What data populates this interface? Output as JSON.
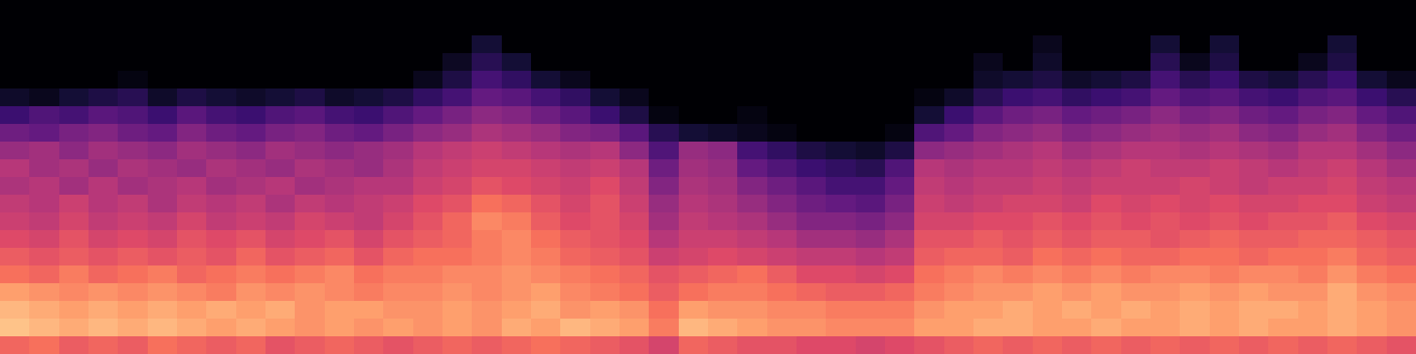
{
  "chart_data": {
    "type": "heatmap",
    "color": "magma",
    "tick_labels": false,
    "zlim": [
      -80,
      0
    ],
    "cells": [
      [
        -26,
        -24,
        -28,
        -26,
        -28,
        -24,
        -26,
        -28,
        -26,
        -30,
        -28,
        -26,
        -28,
        -30,
        -28,
        -26,
        -28,
        -26,
        -24,
        -26,
        -28,
        -30,
        -34,
        -26,
        -28,
        -30,
        -30,
        -32,
        -32,
        -34,
        -32,
        -30,
        -28,
        -26,
        -28,
        -26,
        -28,
        -26,
        -28,
        -26,
        -28,
        -26,
        -28,
        -26,
        -28,
        -26,
        -28,
        -30
      ],
      [
        -10,
        -12,
        -14,
        -12,
        -14,
        -12,
        -14,
        -16,
        -14,
        -16,
        -18,
        -16,
        -18,
        -16,
        -18,
        -16,
        -18,
        -14,
        -16,
        -12,
        -14,
        -16,
        -22,
        -12,
        -14,
        -16,
        -18,
        -18,
        -20,
        -20,
        -20,
        -16,
        -16,
        -14,
        -14,
        -16,
        -16,
        -14,
        -16,
        -16,
        -14,
        -16,
        -14,
        -16,
        -16,
        -14,
        -16,
        -18
      ],
      [
        -12,
        -14,
        -16,
        -14,
        -16,
        -14,
        -16,
        -14,
        -16,
        -14,
        -18,
        -16,
        -16,
        -18,
        -18,
        -16,
        -18,
        -16,
        -14,
        -18,
        -16,
        -18,
        -24,
        -16,
        -18,
        -18,
        -20,
        -20,
        -22,
        -22,
        -22,
        -18,
        -16,
        -16,
        -14,
        -16,
        -14,
        -16,
        -14,
        -16,
        -14,
        -16,
        -14,
        -14,
        -16,
        -14,
        -16,
        -18
      ],
      [
        -16,
        -18,
        -20,
        -18,
        -20,
        -18,
        -20,
        -22,
        -18,
        -20,
        -18,
        -20,
        -22,
        -20,
        -20,
        -18,
        -20,
        -18,
        -16,
        -20,
        -22,
        -24,
        -28,
        -24,
        -22,
        -22,
        -24,
        -26,
        -28,
        -28,
        -26,
        -22,
        -20,
        -18,
        -18,
        -16,
        -18,
        -16,
        -18,
        -18,
        -16,
        -18,
        -16,
        -18,
        -18,
        -14,
        -18,
        -20
      ],
      [
        -24,
        -26,
        -22,
        -26,
        -24,
        -22,
        -26,
        -24,
        -22,
        -24,
        -22,
        -20,
        -24,
        -22,
        -22,
        -20,
        -20,
        -18,
        -20,
        -22,
        -24,
        -26,
        -30,
        -28,
        -26,
        -24,
        -28,
        -32,
        -32,
        -34,
        -32,
        -24,
        -22,
        -20,
        -22,
        -20,
        -22,
        -20,
        -22,
        -20,
        -20,
        -22,
        -20,
        -20,
        -22,
        -18,
        -22,
        -24
      ],
      [
        -28,
        -30,
        -28,
        -30,
        -28,
        -30,
        -28,
        -30,
        -26,
        -30,
        -28,
        -26,
        -30,
        -26,
        -24,
        -24,
        -22,
        -20,
        -22,
        -26,
        -28,
        -30,
        -36,
        -34,
        -32,
        -34,
        -36,
        -38,
        -38,
        -40,
        -38,
        -28,
        -26,
        -26,
        -28,
        -24,
        -26,
        -24,
        -26,
        -26,
        -24,
        -24,
        -26,
        -24,
        -24,
        -22,
        -26,
        -28
      ],
      [
        -32,
        -34,
        -30,
        -34,
        -32,
        -34,
        -30,
        -32,
        -30,
        -34,
        -32,
        -30,
        -34,
        -30,
        -28,
        -26,
        -22,
        -20,
        -24,
        -28,
        -30,
        -32,
        -40,
        -36,
        -36,
        -38,
        -40,
        -44,
        -44,
        -46,
        -42,
        -30,
        -30,
        -28,
        -30,
        -28,
        -30,
        -28,
        -28,
        -30,
        -28,
        -26,
        -28,
        -28,
        -26,
        -26,
        -28,
        -30
      ],
      [
        -36,
        -38,
        -34,
        -38,
        -36,
        -38,
        -34,
        -38,
        -36,
        -38,
        -34,
        -36,
        -38,
        -34,
        -30,
        -26,
        -20,
        -22,
        -28,
        -32,
        -30,
        -34,
        -44,
        -38,
        -40,
        -42,
        -46,
        -50,
        -50,
        -52,
        -48,
        -34,
        -34,
        -32,
        -32,
        -30,
        -32,
        -30,
        -32,
        -30,
        -32,
        -30,
        -32,
        -30,
        -30,
        -28,
        -32,
        -34
      ],
      [
        -38,
        -40,
        -36,
        -40,
        -38,
        -42,
        -38,
        -40,
        -38,
        -42,
        -38,
        -40,
        -38,
        -36,
        -32,
        -30,
        -24,
        -26,
        -30,
        -34,
        -30,
        -36,
        -46,
        -40,
        -42,
        -46,
        -50,
        -54,
        -56,
        -58,
        -52,
        -36,
        -38,
        -36,
        -34,
        -34,
        -36,
        -32,
        -34,
        -32,
        -34,
        -32,
        -34,
        -34,
        -32,
        -32,
        -36,
        -38
      ],
      [
        -42,
        -40,
        -44,
        -40,
        -44,
        -42,
        -40,
        -44,
        -42,
        -40,
        -44,
        -42,
        -40,
        -40,
        -36,
        -34,
        -30,
        -32,
        -34,
        -36,
        -32,
        -38,
        -50,
        -42,
        -44,
        -50,
        -54,
        -58,
        -62,
        -62,
        -56,
        -38,
        -40,
        -38,
        -38,
        -36,
        -38,
        -36,
        -36,
        -36,
        -34,
        -36,
        -38,
        -36,
        -36,
        -34,
        -38,
        -40
      ],
      [
        -40,
        -44,
        -42,
        -46,
        -42,
        -44,
        -46,
        -42,
        -44,
        -46,
        -42,
        -44,
        -46,
        -42,
        -38,
        -36,
        -34,
        -34,
        -36,
        -38,
        -36,
        -40,
        -54,
        -44,
        -46,
        -56,
        -60,
        -64,
        -66,
        -68,
        -60,
        -40,
        -42,
        -40,
        -40,
        -38,
        -40,
        -38,
        -36,
        -38,
        -38,
        -36,
        -38,
        -40,
        -38,
        -36,
        -40,
        -44
      ],
      [
        -46,
        -44,
        -48,
        -44,
        -46,
        -48,
        -44,
        -46,
        -48,
        -44,
        -46,
        -48,
        -46,
        -44,
        -40,
        -38,
        -36,
        -38,
        -40,
        -42,
        -40,
        -48,
        -60,
        -46,
        -48,
        -62,
        -66,
        -70,
        -72,
        -74,
        -70,
        -48,
        -46,
        -44,
        -42,
        -40,
        -44,
        -42,
        -40,
        -40,
        -42,
        -40,
        -42,
        -44,
        -40,
        -40,
        -44,
        -48
      ],
      [
        -54,
        -56,
        -52,
        -50,
        -54,
        -56,
        -50,
        -54,
        -56,
        -52,
        -50,
        -54,
        -56,
        -52,
        -48,
        -46,
        -42,
        -44,
        -46,
        -50,
        -52,
        -58,
        -68,
        -72,
        -74,
        -76,
        -78,
        -80,
        -80,
        -80,
        -78,
        -60,
        -56,
        -50,
        -48,
        -46,
        -50,
        -48,
        -46,
        -44,
        -46,
        -44,
        -48,
        -50,
        -46,
        -44,
        -50,
        -54
      ],
      [
        -64,
        -60,
        -62,
        -58,
        -60,
        -64,
        -58,
        -62,
        -64,
        -60,
        -58,
        -62,
        -64,
        -60,
        -56,
        -52,
        -48,
        -50,
        -54,
        -58,
        -64,
        -70,
        -78,
        -80,
        -80,
        -78,
        -80,
        -80,
        -80,
        -80,
        -80,
        -72,
        -64,
        -58,
        -54,
        -52,
        -56,
        -54,
        -52,
        -48,
        -52,
        -50,
        -54,
        -56,
        -52,
        -50,
        -56,
        -60
      ],
      [
        -74,
        -76,
        -72,
        -70,
        -68,
        -74,
        -70,
        -72,
        -74,
        -72,
        -70,
        -74,
        -72,
        -70,
        -66,
        -62,
        -56,
        -58,
        -62,
        -66,
        -72,
        -76,
        -80,
        -80,
        -80,
        -80,
        -80,
        -80,
        -80,
        -80,
        -80,
        -78,
        -74,
        -68,
        -64,
        -62,
        -66,
        -64,
        -62,
        -56,
        -60,
        -58,
        -62,
        -64,
        -60,
        -58,
        -64,
        -68
      ],
      [
        -80,
        -80,
        -80,
        -80,
        -78,
        -80,
        -80,
        -80,
        -80,
        -80,
        -80,
        -80,
        -80,
        -80,
        -76,
        -70,
        -62,
        -66,
        -72,
        -76,
        -80,
        -80,
        -80,
        -80,
        -80,
        -80,
        -80,
        -80,
        -80,
        -80,
        -80,
        -80,
        -80,
        -74,
        -72,
        -70,
        -74,
        -72,
        -70,
        -62,
        -68,
        -64,
        -70,
        -72,
        -68,
        -64,
        -72,
        -76
      ],
      [
        -80,
        -80,
        -80,
        -80,
        -80,
        -80,
        -80,
        -80,
        -80,
        -80,
        -80,
        -80,
        -80,
        -80,
        -80,
        -75,
        -68,
        -72,
        -80,
        -80,
        -80,
        -80,
        -80,
        -80,
        -80,
        -80,
        -80,
        -80,
        -80,
        -80,
        -80,
        -80,
        -80,
        -76,
        -80,
        -74,
        -80,
        -80,
        -80,
        -68,
        -76,
        -70,
        -80,
        -80,
        -76,
        -70,
        -80,
        -80
      ],
      [
        -80,
        -80,
        -80,
        -80,
        -80,
        -80,
        -80,
        -80,
        -80,
        -80,
        -80,
        -80,
        -80,
        -80,
        -80,
        -80,
        -72,
        -80,
        -80,
        -80,
        -80,
        -80,
        -80,
        -80,
        -80,
        -80,
        -80,
        -80,
        -80,
        -80,
        -80,
        -80,
        -80,
        -80,
        -80,
        -76,
        -80,
        -80,
        -80,
        -72,
        -80,
        -72,
        -80,
        -80,
        -80,
        -72,
        -80,
        -80
      ],
      [
        -80,
        -80,
        -80,
        -80,
        -80,
        -80,
        -80,
        -80,
        -80,
        -80,
        -80,
        -80,
        -80,
        -80,
        -80,
        -80,
        -80,
        -80,
        -80,
        -80,
        -80,
        -80,
        -80,
        -80,
        -80,
        -80,
        -80,
        -80,
        -80,
        -80,
        -80,
        -80,
        -80,
        -80,
        -80,
        -80,
        -80,
        -80,
        -80,
        -80,
        -80,
        -80,
        -80,
        -80,
        -80,
        -80,
        -80,
        -80
      ],
      [
        -80,
        -80,
        -80,
        -80,
        -80,
        -80,
        -80,
        -80,
        -80,
        -80,
        -80,
        -80,
        -80,
        -80,
        -80,
        -80,
        -80,
        -80,
        -80,
        -80,
        -80,
        -80,
        -80,
        -80,
        -80,
        -80,
        -80,
        -80,
        -80,
        -80,
        -80,
        -80,
        -80,
        -80,
        -80,
        -80,
        -80,
        -80,
        -80,
        -80,
        -80,
        -80,
        -80,
        -80,
        -80,
        -80,
        -80,
        -80
      ]
    ]
  }
}
